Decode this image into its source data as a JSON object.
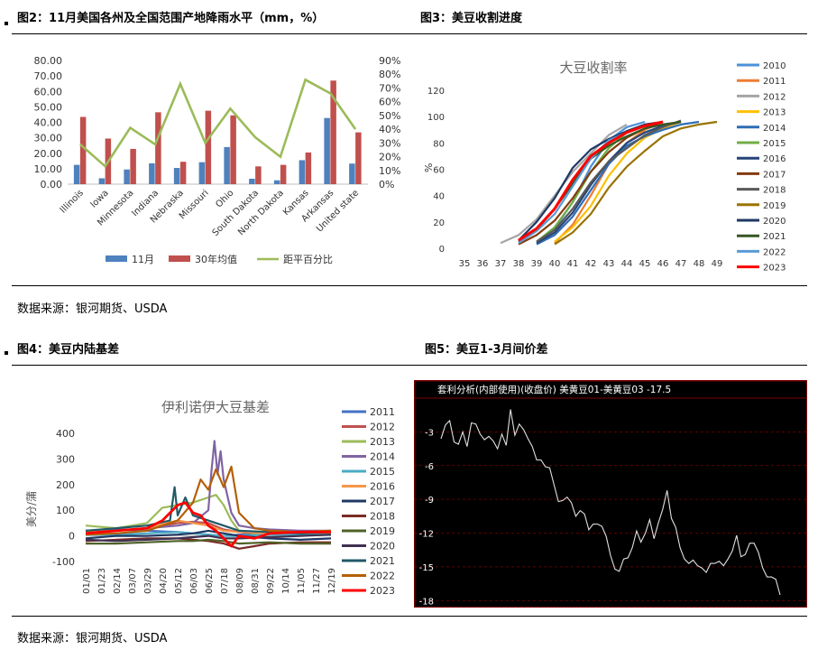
{
  "fig2": {
    "title": "图2：11月美国各州及全国范围产地降雨水平（mm，%）",
    "chart_data": {
      "type": "bar",
      "categories": [
        "Illinois",
        "Iowa",
        "Minnesota",
        "Indiana",
        "Nebraska",
        "Missouri",
        "Ohio",
        "South Dakota",
        "North Dakota",
        "Kansas",
        "Arkansas",
        "United state"
      ],
      "series": [
        {
          "name": "11月",
          "type": "bar",
          "axis": "left",
          "color": "#4f81bd",
          "values": [
            12.5,
            3.8,
            9.5,
            13.5,
            10.5,
            14.2,
            24,
            3.5,
            2.5,
            15.5,
            42.8,
            13.3
          ]
        },
        {
          "name": "30年均值",
          "type": "bar",
          "axis": "left",
          "color": "#c0504d",
          "values": [
            43.5,
            29.5,
            22.8,
            46.5,
            14.5,
            47.5,
            44.5,
            11.5,
            12.5,
            20.5,
            67,
            33.5
          ]
        },
        {
          "name": "距平百分比",
          "type": "line",
          "axis": "right",
          "color": "#9bbb59",
          "values": [
            29,
            13,
            41,
            29,
            73,
            30,
            55,
            34,
            20,
            76,
            66,
            40
          ]
        }
      ],
      "ylim_left": [
        0,
        80
      ],
      "yticks_left": [
        "0.00",
        "10.00",
        "20.00",
        "30.00",
        "40.00",
        "50.00",
        "60.00",
        "70.00",
        "80.00"
      ],
      "ylim_right": [
        0,
        90
      ],
      "yticks_right": [
        "0%",
        "10%",
        "20%",
        "30%",
        "40%",
        "50%",
        "60%",
        "70%",
        "80%",
        "90%"
      ],
      "legend": [
        "11月",
        "30年均值",
        "距平百分比"
      ],
      "legend_position": "bottom"
    }
  },
  "fig3": {
    "title": "图3：美豆收割进度",
    "chart_data": {
      "type": "line",
      "title": "大豆收割率",
      "ylabel": "%",
      "x_ticks": [
        "35",
        "36",
        "37",
        "38",
        "39",
        "40",
        "41",
        "42",
        "43",
        "44",
        "45",
        "46",
        "47",
        "48",
        "49"
      ],
      "y_ticks": [
        "0",
        "20",
        "40",
        "60",
        "80",
        "100",
        "120"
      ],
      "xlim": [
        35,
        49
      ],
      "ylim": [
        0,
        120
      ],
      "legend_position": "right",
      "series": [
        {
          "name": "2010",
          "color": "#4a90d9",
          "x": [
            39,
            40,
            41,
            42,
            43,
            44,
            45
          ],
          "y": [
            5,
            15,
            35,
            62,
            82,
            92,
            96
          ]
        },
        {
          "name": "2011",
          "color": "#ed7d31",
          "x": [
            40,
            41,
            42,
            43,
            44,
            45,
            46
          ],
          "y": [
            4,
            18,
            40,
            64,
            80,
            90,
            96
          ]
        },
        {
          "name": "2012",
          "color": "#a5a5a5",
          "x": [
            37,
            38,
            39,
            40,
            41,
            42,
            43,
            44
          ],
          "y": [
            4,
            10,
            22,
            40,
            58,
            72,
            86,
            94
          ]
        },
        {
          "name": "2013",
          "color": "#ffc000",
          "x": [
            40,
            41,
            42,
            43,
            44,
            45,
            46,
            47
          ],
          "y": [
            5,
            16,
            32,
            55,
            72,
            84,
            91,
            96
          ]
        },
        {
          "name": "2014",
          "color": "#2f6db5",
          "x": [
            39,
            40,
            41,
            42,
            43,
            44,
            45,
            46,
            47,
            48
          ],
          "y": [
            3,
            10,
            24,
            44,
            64,
            78,
            85,
            90,
            94,
            96
          ]
        },
        {
          "name": "2015",
          "color": "#70ad47",
          "x": [
            39,
            40,
            41,
            42,
            43,
            44,
            45,
            46
          ],
          "y": [
            5,
            16,
            35,
            58,
            76,
            88,
            93,
            96
          ]
        },
        {
          "name": "2016",
          "color": "#264478",
          "x": [
            39,
            40,
            41,
            42,
            43,
            44,
            45,
            46,
            47
          ],
          "y": [
            4,
            12,
            27,
            48,
            66,
            80,
            88,
            93,
            96
          ]
        },
        {
          "name": "2017",
          "color": "#843c0c",
          "x": [
            38,
            39,
            40,
            41,
            42,
            43,
            44,
            45,
            46
          ],
          "y": [
            3,
            10,
            21,
            38,
            58,
            73,
            84,
            91,
            96
          ]
        },
        {
          "name": "2018",
          "color": "#595959",
          "x": [
            39,
            40,
            41,
            42,
            43,
            44,
            45,
            46,
            47
          ],
          "y": [
            5,
            14,
            30,
            50,
            66,
            76,
            86,
            92,
            97
          ]
        },
        {
          "name": "2019",
          "color": "#997300",
          "x": [
            40,
            41,
            42,
            43,
            44,
            45,
            46,
            47,
            48,
            49
          ],
          "y": [
            3,
            12,
            26,
            46,
            62,
            74,
            85,
            91,
            94,
            96
          ]
        },
        {
          "name": "2020",
          "color": "#1f3864",
          "x": [
            38,
            39,
            40,
            41,
            42,
            43,
            44,
            45,
            46
          ],
          "y": [
            6,
            20,
            38,
            61,
            75,
            83,
            89,
            94,
            96
          ]
        },
        {
          "name": "2021",
          "color": "#375623",
          "x": [
            38,
            39,
            40,
            41,
            42,
            43,
            44,
            45,
            46,
            47
          ],
          "y": [
            5,
            14,
            30,
            49,
            68,
            78,
            85,
            91,
            94,
            96
          ]
        },
        {
          "name": "2022",
          "color": "#5b9bd5",
          "x": [
            38,
            39,
            40,
            41,
            42,
            43,
            44,
            45,
            46
          ],
          "y": [
            4,
            13,
            26,
            47,
            68,
            82,
            88,
            93,
            96
          ]
        },
        {
          "name": "2023",
          "color": "#ff0000",
          "x": [
            38,
            39,
            40,
            41,
            42,
            43,
            44,
            45,
            46
          ],
          "y": [
            6,
            15,
            30,
            52,
            70,
            80,
            88,
            93,
            96
          ]
        }
      ]
    }
  },
  "source1": "数据来源：银河期货、USDA",
  "fig4": {
    "title": "图4：美豆内陆基差",
    "chart_data": {
      "type": "line",
      "title": "伊利诺伊大豆基差",
      "ylabel": "美分/蒲",
      "x_ticks": [
        "01/01",
        "01/23",
        "02/14",
        "03/07",
        "03/29",
        "04/20",
        "05/12",
        "06/03",
        "06/25",
        "07/18",
        "08/09",
        "08/31",
        "09/22",
        "10/14",
        "11/05",
        "11/27",
        "12/19"
      ],
      "y_ticks": [
        "-100",
        "0",
        "100",
        "200",
        "300",
        "400"
      ],
      "ylim": [
        -100,
        400
      ],
      "legend_position": "right",
      "series": [
        {
          "name": "2011",
          "color": "#4472c4",
          "x": [
            0,
            2,
            4,
            6,
            7,
            8,
            9,
            10,
            11,
            12,
            14,
            16
          ],
          "y": [
            20,
            25,
            20,
            15,
            10,
            5,
            0,
            5,
            10,
            15,
            15,
            20
          ]
        },
        {
          "name": "2012",
          "color": "#c0504d",
          "x": [
            0,
            2,
            4,
            5,
            6,
            7,
            8,
            9,
            10,
            11,
            12,
            14,
            16
          ],
          "y": [
            10,
            20,
            30,
            40,
            50,
            55,
            50,
            25,
            15,
            10,
            10,
            10,
            15
          ]
        },
        {
          "name": "2013",
          "color": "#9bbb59",
          "x": [
            0,
            2,
            4,
            5,
            6,
            7,
            8,
            8.5,
            9,
            9.5,
            10,
            11,
            12,
            14,
            16
          ],
          "y": [
            40,
            30,
            50,
            110,
            120,
            130,
            150,
            160,
            120,
            60,
            20,
            10,
            15,
            10,
            10
          ]
        },
        {
          "name": "2014",
          "color": "#8064a2",
          "x": [
            0,
            2,
            4,
            6,
            7,
            8,
            8.2,
            8.4,
            8.6,
            8.8,
            9,
            9.5,
            10,
            11,
            12,
            14,
            16
          ],
          "y": [
            10,
            20,
            30,
            40,
            50,
            100,
            250,
            370,
            240,
            330,
            220,
            90,
            40,
            30,
            25,
            20,
            20
          ]
        },
        {
          "name": "2015",
          "color": "#4bacc6",
          "x": [
            0,
            2,
            4,
            6,
            7,
            8,
            9,
            10,
            12,
            14,
            16
          ],
          "y": [
            5,
            5,
            10,
            15,
            10,
            5,
            0,
            0,
            5,
            5,
            5
          ]
        },
        {
          "name": "2016",
          "color": "#f79646",
          "x": [
            0,
            2,
            4,
            6,
            7,
            8,
            9,
            10,
            12,
            14,
            16
          ],
          "y": [
            15,
            20,
            30,
            60,
            50,
            40,
            20,
            15,
            10,
            15,
            20
          ]
        },
        {
          "name": "2017",
          "color": "#1f3864",
          "x": [
            0,
            2,
            4,
            6,
            7,
            8,
            9,
            10,
            12,
            14,
            16
          ],
          "y": [
            -10,
            0,
            0,
            5,
            10,
            20,
            10,
            0,
            -10,
            -15,
            -10
          ]
        },
        {
          "name": "2018",
          "color": "#7b2c26",
          "x": [
            0,
            2,
            4,
            6,
            7,
            8,
            9,
            10,
            11,
            12,
            14,
            16
          ],
          "y": [
            -20,
            -15,
            -10,
            -10,
            -15,
            -20,
            -30,
            -50,
            -40,
            -30,
            -25,
            -25
          ]
        },
        {
          "name": "2019",
          "color": "#4f6228",
          "x": [
            0,
            2,
            4,
            6,
            7,
            8,
            9,
            10,
            12,
            14,
            16
          ],
          "y": [
            -30,
            -30,
            -25,
            -20,
            -20,
            -15,
            -20,
            -30,
            -25,
            -30,
            -30
          ]
        },
        {
          "name": "2020",
          "color": "#3f3151",
          "x": [
            0,
            2,
            4,
            6,
            7,
            8,
            9,
            10,
            12,
            14,
            16
          ],
          "y": [
            -15,
            -20,
            -15,
            -10,
            -5,
            0,
            -10,
            -10,
            -5,
            0,
            5
          ]
        },
        {
          "name": "2021",
          "color": "#215968",
          "x": [
            0,
            2,
            4,
            5.5,
            5.8,
            6,
            6.5,
            7,
            8,
            9,
            10,
            12,
            14,
            16
          ],
          "y": [
            20,
            30,
            40,
            60,
            190,
            80,
            150,
            80,
            60,
            40,
            20,
            15,
            10,
            15
          ]
        },
        {
          "name": "2022",
          "color": "#b45f06",
          "x": [
            0,
            2,
            4,
            6,
            7,
            7.5,
            8,
            8.5,
            9,
            9.5,
            10,
            11,
            12,
            14,
            16
          ],
          "y": [
            5,
            10,
            20,
            60,
            130,
            220,
            180,
            260,
            190,
            270,
            90,
            30,
            20,
            15,
            20
          ]
        },
        {
          "name": "2023",
          "color": "#ff0000",
          "x": [
            0,
            2,
            4,
            5,
            6,
            6.5,
            7,
            7.5,
            8,
            8.5,
            9,
            9.5,
            10,
            11,
            12,
            14,
            16
          ],
          "y": [
            10,
            20,
            30,
            60,
            120,
            130,
            90,
            80,
            40,
            20,
            -10,
            -40,
            0,
            -10,
            10,
            15,
            15
          ]
        }
      ]
    }
  },
  "fig5": {
    "title": "图5：美豆1-3月间价差",
    "header": "套利分析(内部使用)(收盘价) 美黄豆01-美黄豆03",
    "header_value": "-17.5",
    "chart_data": {
      "type": "line",
      "y_ticks": [
        "-3",
        "-6",
        "-9",
        "-12",
        "-15",
        "-18"
      ],
      "ylim": [
        -18.3,
        0
      ],
      "series": [
        {
          "name": "",
          "color": "#e0e0e0",
          "y": [
            -3.6,
            -2.4,
            -2,
            -3.9,
            -4.1,
            -3,
            -4.3,
            -2.2,
            -2.3,
            -3.2,
            -3.7,
            -3.4,
            -3.8,
            -4.5,
            -3.2,
            -4.2,
            -1,
            -3.3,
            -2.3,
            -2.8,
            -3.6,
            -4.3,
            -5.5,
            -5.5,
            -6.1,
            -6.2,
            -7.7,
            -9.2,
            -9.1,
            -8.8,
            -9.3,
            -10.5,
            -10,
            -10.3,
            -11.7,
            -11.2,
            -11.2,
            -11.4,
            -12.3,
            -14,
            -15.2,
            -15.4,
            -14.3,
            -14.2,
            -13.3,
            -11.8,
            -12.8,
            -12,
            -10.8,
            -12.5,
            -11.1,
            -9.9,
            -8.2,
            -10.7,
            -11.5,
            -13.3,
            -14.3,
            -14.7,
            -14.4,
            -14.9,
            -15.1,
            -15.5,
            -14.7,
            -14.7,
            -14.5,
            -14.9,
            -14.3,
            -13.6,
            -12.2,
            -14.1,
            -13.9,
            -12.9,
            -12.9,
            -13.7,
            -15.1,
            -15.9,
            -15.9,
            -16.1,
            -17.5
          ]
        }
      ]
    }
  },
  "source2": "数据来源：银河期货、USDA"
}
